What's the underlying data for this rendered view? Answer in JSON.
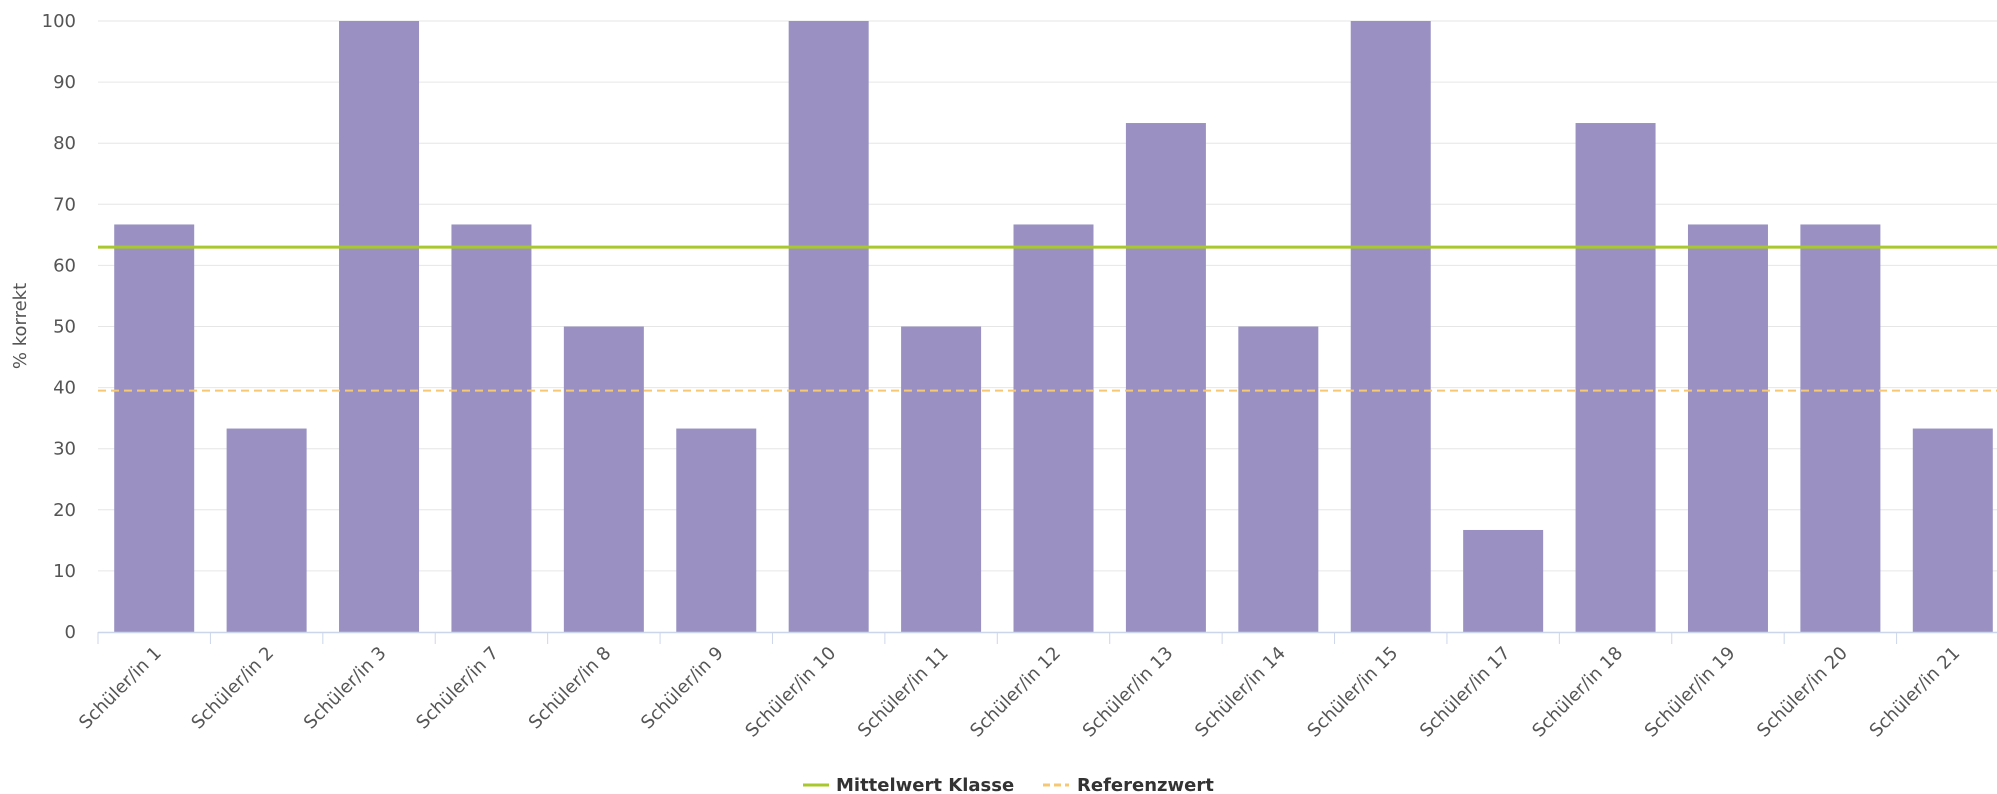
{
  "chart_data": {
    "type": "bar",
    "title": "",
    "xlabel": "",
    "ylabel": "% korrekt",
    "ylim": [
      0,
      100
    ],
    "yticks": [
      0,
      10,
      20,
      30,
      40,
      50,
      60,
      70,
      80,
      90,
      100
    ],
    "grid": true,
    "legend_position": "bottom-center",
    "categories": [
      "Schüler/in 1",
      "Schüler/in 2",
      "Schüler/in 3",
      "Schüler/in 7",
      "Schüler/in 8",
      "Schüler/in 9",
      "Schüler/in 10",
      "Schüler/in 11",
      "Schüler/in 12",
      "Schüler/in 13",
      "Schüler/in 14",
      "Schüler/in 15",
      "Schüler/in 17",
      "Schüler/in 18",
      "Schüler/in 19",
      "Schüler/in 20",
      "Schüler/in 21"
    ],
    "values": [
      66.7,
      33.3,
      100,
      66.7,
      50,
      33.3,
      100,
      50,
      66.7,
      83.3,
      50,
      100,
      16.7,
      83.3,
      66.7,
      66.7,
      33.3
    ],
    "reference_lines": [
      {
        "name": "Mittelwert Klasse",
        "value": 63,
        "style": "solid",
        "color": "#a8c82e"
      },
      {
        "name": "Referenzwert",
        "value": 39.5,
        "style": "dashed",
        "color": "#f7c873"
      }
    ],
    "colors": {
      "bar": "#9a91c2",
      "grid": "#e6e6e6",
      "axis": "#ccd6eb"
    }
  }
}
